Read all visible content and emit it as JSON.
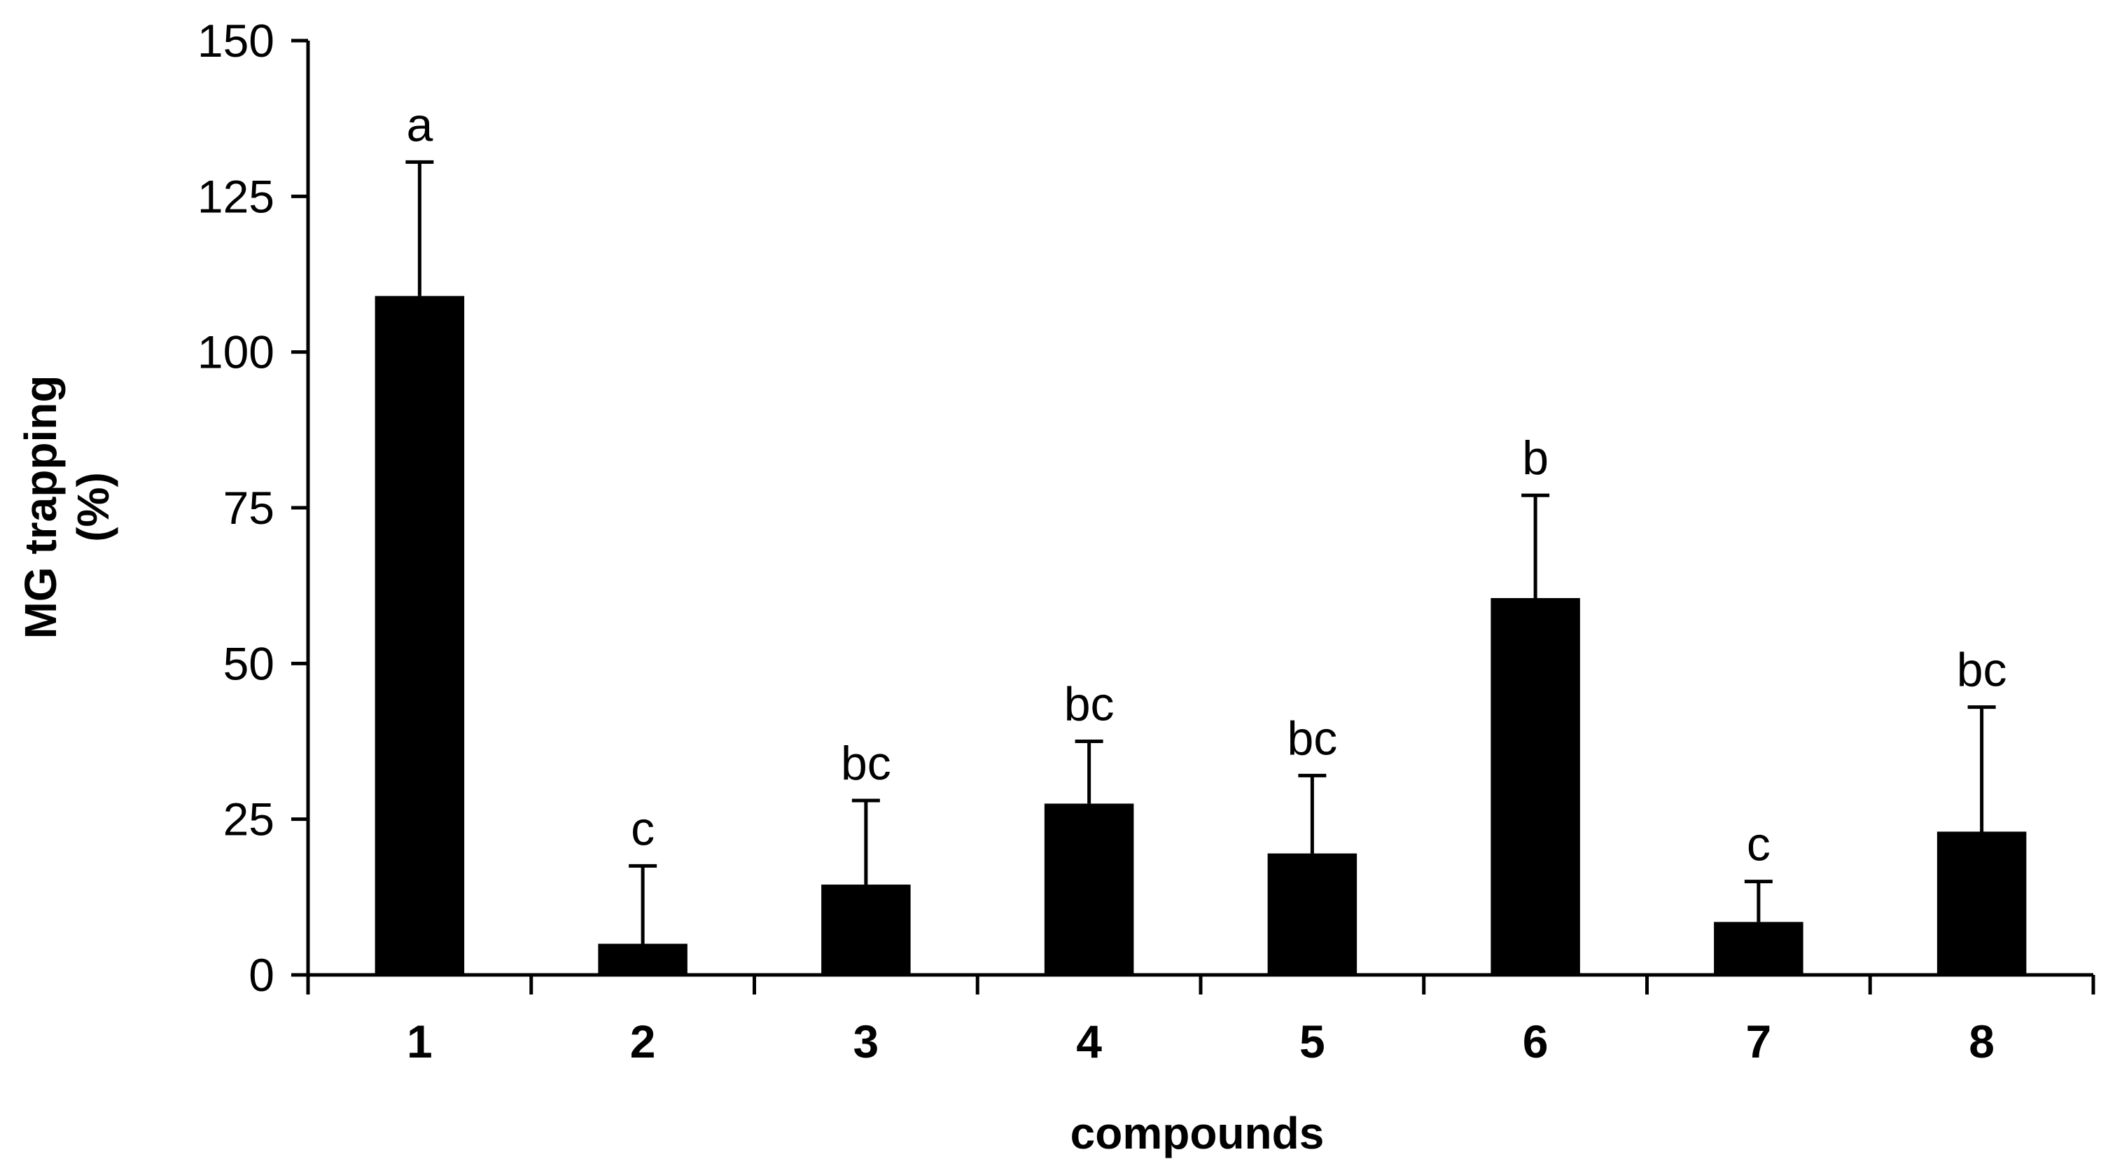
{
  "chart_data": {
    "type": "bar",
    "title": "",
    "xlabel": "compounds",
    "ylabel_lines": [
      "MG trapping",
      "(%)"
    ],
    "ylim": [
      0,
      150
    ],
    "yticks": [
      0,
      25,
      50,
      75,
      100,
      125,
      150
    ],
    "grid": false,
    "legend": "none",
    "bar_color": "#000000",
    "categories": [
      "1",
      "2",
      "3",
      "4",
      "5",
      "6",
      "7",
      "8"
    ],
    "values": [
      109,
      5,
      14.5,
      27.5,
      19.5,
      60.5,
      8.5,
      23
    ],
    "errors": [
      21.5,
      12.5,
      13.5,
      10,
      12.5,
      16.5,
      6.5,
      20
    ],
    "significance_labels": [
      "a",
      "c",
      "bc",
      "bc",
      "bc",
      "b",
      "c",
      "bc"
    ]
  }
}
